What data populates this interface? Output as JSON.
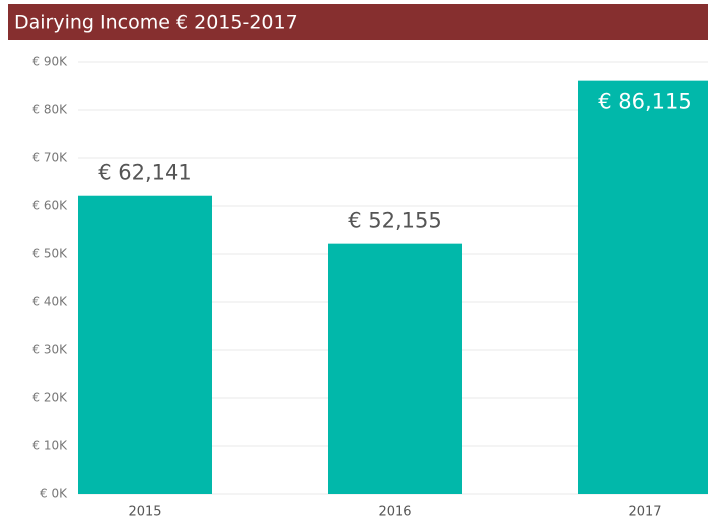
{
  "chart_data": {
    "type": "bar",
    "title": "Dairying Income € 2015-2017",
    "categories": [
      "2015",
      "2016",
      "2017"
    ],
    "values": [
      62141,
      52155,
      86115
    ],
    "value_labels": [
      "€ 62,141",
      "€ 52,155",
      "€ 86,115"
    ],
    "color": "#01b8aa",
    "title_background": "#862f2f",
    "ylim": [
      0,
      90000
    ],
    "yticks": [
      {
        "value": 0,
        "label": "€ 0K"
      },
      {
        "value": 10000,
        "label": "€ 10K"
      },
      {
        "value": 20000,
        "label": "€ 20K"
      },
      {
        "value": 30000,
        "label": "€ 30K"
      },
      {
        "value": 40000,
        "label": "€ 40K"
      },
      {
        "value": 50000,
        "label": "€ 50K"
      },
      {
        "value": 60000,
        "label": "€ 60K"
      },
      {
        "value": 70000,
        "label": "€ 70K"
      },
      {
        "value": 80000,
        "label": "€ 80K"
      },
      {
        "value": 90000,
        "label": "€ 90K"
      }
    ],
    "grid": true
  }
}
